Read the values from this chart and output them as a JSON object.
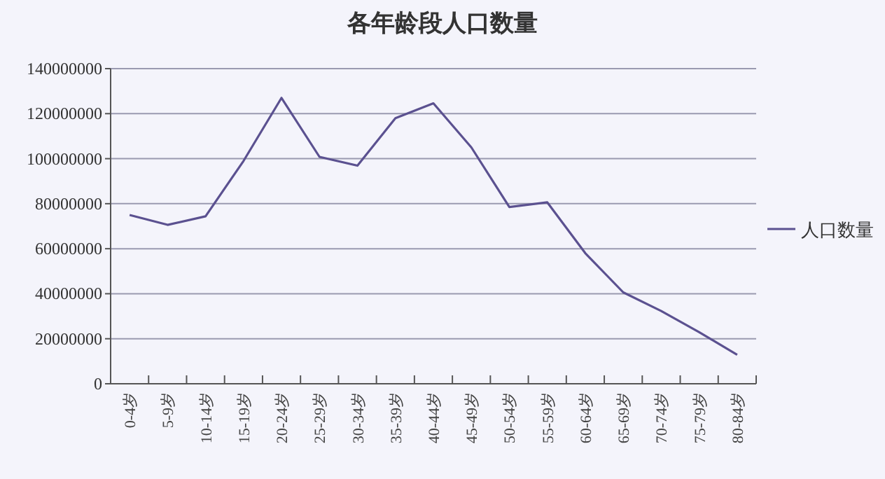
{
  "chart_data": {
    "type": "line",
    "title": "各年龄段人口数量",
    "categories": [
      "0-4岁",
      "5-9岁",
      "10-14岁",
      "15-19岁",
      "20-24岁",
      "25-29岁",
      "30-34岁",
      "35-39岁",
      "40-44岁",
      "45-49岁",
      "50-54岁",
      "55-59岁",
      "60-64岁",
      "65-69岁",
      "70-74岁",
      "75-79岁",
      "80-84岁"
    ],
    "series": [
      {
        "name": "人口数量",
        "color": "#5b5190",
        "values": [
          75000000,
          70600000,
          74400000,
          99000000,
          127000000,
          100800000,
          96900000,
          118000000,
          124600000,
          105000000,
          78500000,
          80600000,
          58000000,
          40600000,
          32300000,
          22900000,
          12900000
        ]
      }
    ],
    "ylim": [
      0,
      140000000
    ],
    "yticks": [
      0,
      20000000,
      40000000,
      60000000,
      80000000,
      100000000,
      120000000,
      140000000
    ],
    "grid": "y",
    "legend": "right",
    "marker": "none",
    "line_style": "solid"
  }
}
